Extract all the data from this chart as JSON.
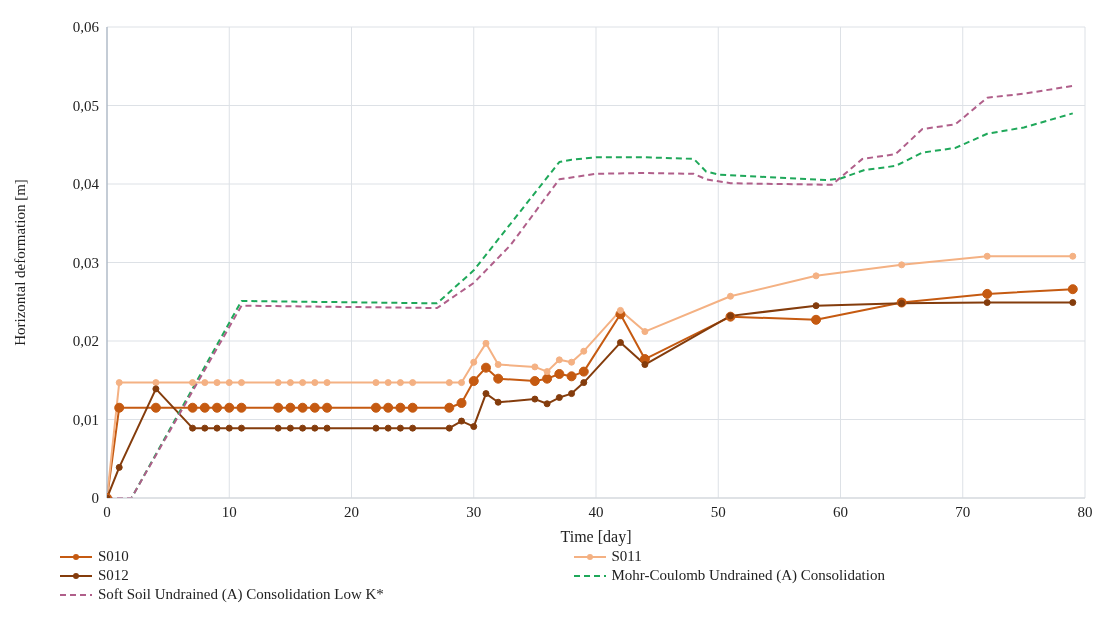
{
  "chart_data": {
    "type": "line",
    "xlabel": "Time [day]",
    "ylabel": "Horizontal deformation [m]",
    "xlim": [
      0,
      80
    ],
    "xticks": [
      0,
      10,
      20,
      30,
      40,
      50,
      60,
      70,
      80
    ],
    "ylim": [
      0,
      0.06
    ],
    "yticks": [
      {
        "value": 0,
        "label": "0"
      },
      {
        "value": 0.01,
        "label": "0,01"
      },
      {
        "value": 0.02,
        "label": "0,02"
      },
      {
        "value": 0.03,
        "label": "0,03"
      },
      {
        "value": 0.04,
        "label": "0,04"
      },
      {
        "value": 0.05,
        "label": "0,05"
      },
      {
        "value": 0.06,
        "label": "0,06"
      }
    ],
    "grid": true,
    "legend": "bottom",
    "series": [
      {
        "name": "S010",
        "color": "#c55a11",
        "marker": "circle",
        "line_style": "solid",
        "x": [
          0,
          1,
          4,
          7,
          8,
          9,
          10,
          11,
          14,
          15,
          16,
          17,
          18,
          22,
          23,
          24,
          25,
          28,
          29,
          30,
          31,
          32,
          35,
          36,
          37,
          38,
          39,
          42,
          44,
          51,
          58,
          65,
          72,
          79
        ],
        "values": [
          0,
          0.0115,
          0.0115,
          0.0115,
          0.0115,
          0.0115,
          0.0115,
          0.0115,
          0.0115,
          0.0115,
          0.0115,
          0.0115,
          0.0115,
          0.0115,
          0.0115,
          0.0115,
          0.0115,
          0.0115,
          0.0121,
          0.0149,
          0.0166,
          0.0152,
          0.0149,
          0.0152,
          0.0158,
          0.0155,
          0.0161,
          0.0234,
          0.0177,
          0.0231,
          0.0227,
          0.0249,
          0.026,
          0.0266
        ]
      },
      {
        "name": "S011",
        "color": "#f4b183",
        "marker": "circle",
        "line_style": "solid",
        "x": [
          0,
          1,
          4,
          7,
          8,
          9,
          10,
          11,
          14,
          15,
          16,
          17,
          18,
          22,
          23,
          24,
          25,
          28,
          29,
          30,
          31,
          32,
          35,
          36,
          37,
          38,
          39,
          42,
          44,
          51,
          58,
          65,
          72,
          79
        ],
        "values": [
          0,
          0.0147,
          0.0147,
          0.0147,
          0.0147,
          0.0147,
          0.0147,
          0.0147,
          0.0147,
          0.0147,
          0.0147,
          0.0147,
          0.0147,
          0.0147,
          0.0147,
          0.0147,
          0.0147,
          0.0147,
          0.0147,
          0.0173,
          0.0197,
          0.017,
          0.0167,
          0.0161,
          0.0176,
          0.0173,
          0.0187,
          0.0239,
          0.0212,
          0.0257,
          0.0283,
          0.0297,
          0.0308,
          0.0308
        ]
      },
      {
        "name": "S012",
        "color": "#843c0c",
        "marker": "circle",
        "line_style": "solid",
        "x": [
          0,
          1,
          4,
          7,
          8,
          9,
          10,
          11,
          14,
          15,
          16,
          17,
          18,
          22,
          23,
          24,
          25,
          28,
          29,
          30,
          31,
          32,
          35,
          36,
          37,
          38,
          39,
          42,
          44,
          51,
          58,
          65,
          72,
          79
        ],
        "values": [
          0,
          0.0039,
          0.0139,
          0.0089,
          0.0089,
          0.0089,
          0.0089,
          0.0089,
          0.0089,
          0.0089,
          0.0089,
          0.0089,
          0.0089,
          0.0089,
          0.0089,
          0.0089,
          0.0089,
          0.0089,
          0.0098,
          0.0091,
          0.0133,
          0.0122,
          0.0126,
          0.012,
          0.0128,
          0.0133,
          0.0147,
          0.0198,
          0.017,
          0.0232,
          0.0245,
          0.0248,
          0.0249,
          0.0249
        ]
      },
      {
        "name": "Mohr-Coulomb Undrained (A) Consolidation",
        "color": "#1fa85a",
        "marker": "none",
        "line_style": "dashed",
        "x": [
          0,
          2,
          11,
          27,
          30,
          37,
          38,
          40,
          44,
          48,
          49,
          50,
          55,
          59,
          60,
          62,
          64.5,
          66.7,
          69.4,
          72,
          75,
          79
        ],
        "values": [
          0,
          0,
          0.0251,
          0.0248,
          0.029,
          0.0428,
          0.0431,
          0.0434,
          0.0434,
          0.0432,
          0.0416,
          0.0412,
          0.0408,
          0.0405,
          0.0407,
          0.0418,
          0.0423,
          0.044,
          0.0446,
          0.0464,
          0.0472,
          0.049
        ]
      },
      {
        "name": "Soft Soil Undrained (A) Consolidation Low K*",
        "color": "#b05f8a",
        "marker": "none",
        "line_style": "dashed",
        "x": [
          0,
          2,
          11,
          27,
          30,
          33,
          37,
          40,
          44,
          48,
          49,
          51,
          55,
          59.3,
          61.8,
          64.5,
          66.7,
          69.4,
          72,
          75,
          79
        ],
        "values": [
          0,
          0,
          0.0245,
          0.0242,
          0.0274,
          0.0322,
          0.0406,
          0.0413,
          0.0414,
          0.0413,
          0.0406,
          0.0401,
          0.04,
          0.0399,
          0.0432,
          0.0438,
          0.047,
          0.0476,
          0.051,
          0.0515,
          0.0525
        ]
      }
    ]
  }
}
